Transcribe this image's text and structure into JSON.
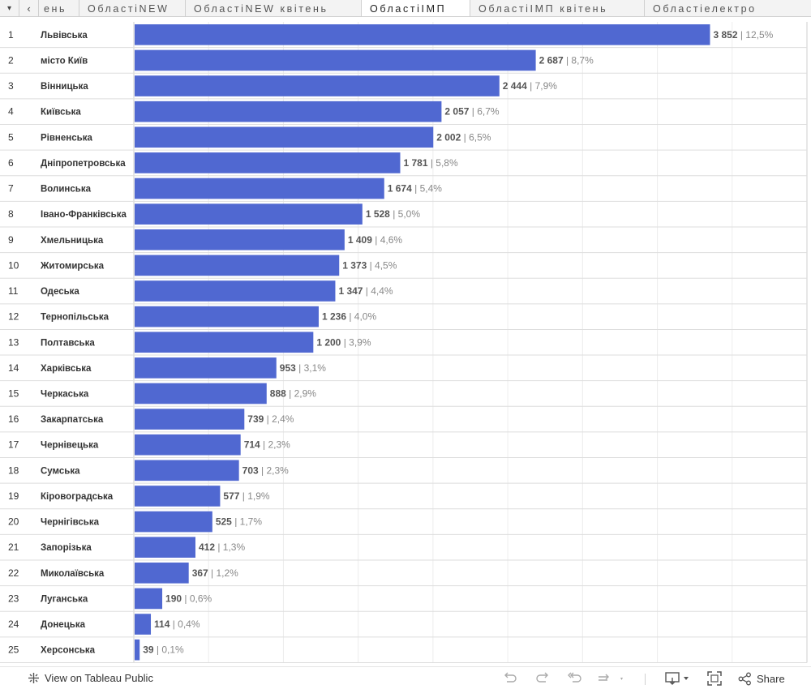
{
  "tabs": {
    "menu_glyph": "▾",
    "prev_glyph": "‹",
    "items": [
      {
        "label": "ень"
      },
      {
        "label": "ОбластіNEW"
      },
      {
        "label": "ОбластіNEW квітень"
      },
      {
        "label": "ОбластіІМП"
      },
      {
        "label": "ОбластіІМП квітень"
      },
      {
        "label": "Областіелектро"
      }
    ],
    "active_index": 3
  },
  "chart_data": {
    "type": "bar",
    "orientation": "horizontal",
    "title": "",
    "categories": [
      "Львівська",
      "місто Київ",
      "Вінницька",
      "Київська",
      "Рівненська",
      "Дніпропетровська",
      "Волинська",
      "Івано-Франківська",
      "Хмельницька",
      "Житомирська",
      "Одеська",
      "Тернопільська",
      "Полтавська",
      "Харківська",
      "Черкаська",
      "Закарпатська",
      "Чернівецька",
      "Сумська",
      "Кіровоградська",
      "Чернігівська",
      "Запорізька",
      "Миколаївська",
      "Луганська",
      "Донецька",
      "Херсонська"
    ],
    "ranks": [
      "1",
      "2",
      "3",
      "4",
      "5",
      "6",
      "7",
      "8",
      "9",
      "10",
      "11",
      "12",
      "13",
      "14",
      "15",
      "16",
      "17",
      "18",
      "19",
      "20",
      "21",
      "22",
      "23",
      "24",
      "25"
    ],
    "values": [
      3852,
      2687,
      2444,
      2057,
      2002,
      1781,
      1674,
      1528,
      1409,
      1373,
      1347,
      1236,
      1200,
      953,
      888,
      739,
      714,
      703,
      577,
      525,
      412,
      367,
      190,
      114,
      39
    ],
    "value_labels": [
      "3 852",
      "2 687",
      "2 444",
      "2 057",
      "2 002",
      "1 781",
      "1 674",
      "1 528",
      "1 409",
      "1 373",
      "1 347",
      "1 236",
      "1 200",
      "953",
      "888",
      "739",
      "714",
      "703",
      "577",
      "525",
      "412",
      "367",
      "190",
      "114",
      "39"
    ],
    "percent_labels": [
      "12,5%",
      "8,7%",
      "7,9%",
      "6,7%",
      "6,5%",
      "5,8%",
      "5,4%",
      "5,0%",
      "4,6%",
      "4,5%",
      "4,4%",
      "4,0%",
      "3,9%",
      "3,1%",
      "2,9%",
      "2,4%",
      "2,3%",
      "2,3%",
      "1,9%",
      "1,7%",
      "1,3%",
      "1,2%",
      "0,6%",
      "0,4%",
      "0,1%"
    ],
    "separator": " | ",
    "xlim": [
      0,
      4500
    ],
    "grid_step": 500,
    "grid": true,
    "legend": "none",
    "bar_color": "#5068d1"
  },
  "footer": {
    "view_label": "View on Tableau Public",
    "share_label": "Share"
  }
}
